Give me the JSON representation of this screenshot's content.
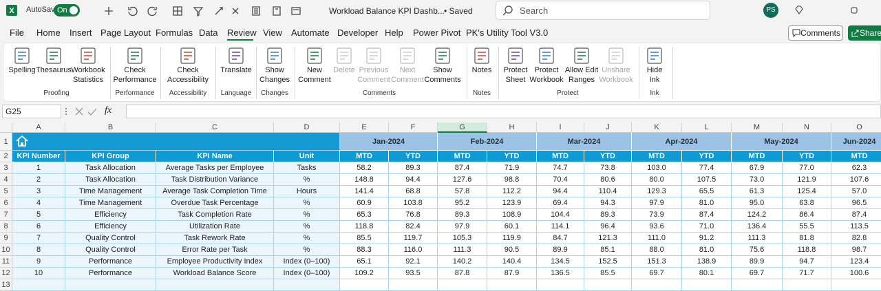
{
  "titlebar": {
    "autosave": "AutoSave",
    "toggle": "On",
    "title": "Workload Balance KPI Dashb...",
    "status": "• Saved",
    "search": "Search",
    "avatar": "PS"
  },
  "menu": {
    "tabs": [
      "File",
      "Home",
      "Insert",
      "Page Layout",
      "Formulas",
      "Data",
      "Review",
      "View",
      "Automate",
      "Developer",
      "Help",
      "Power Pivot",
      "PK's Utility Tool V3.0"
    ],
    "comments": "Comments",
    "share": "Share"
  },
  "ribbon": {
    "groups": [
      {
        "label": "Proofing",
        "buttons": [
          [
            "Spelling"
          ],
          [
            "Thesaurus"
          ],
          [
            "Workbook",
            "Statistics"
          ]
        ]
      },
      {
        "label": "Performance",
        "buttons": [
          [
            "Check",
            "Performance"
          ]
        ]
      },
      {
        "label": "Accessibility",
        "buttons": [
          [
            "Check",
            "Accessibility"
          ]
        ]
      },
      {
        "label": "Language",
        "buttons": [
          [
            "Translate"
          ]
        ]
      },
      {
        "label": "Changes",
        "buttons": [
          [
            "Show",
            "Changes"
          ]
        ]
      },
      {
        "label": "Comments",
        "buttons": [
          [
            "New",
            "Comment"
          ],
          [
            "Delete"
          ],
          [
            "Previous",
            "Comment"
          ],
          [
            "Next",
            "Comment"
          ],
          [
            "Show",
            "Comments"
          ]
        ]
      },
      {
        "label": "Notes",
        "buttons": [
          [
            "Notes"
          ]
        ]
      },
      {
        "label": "Protect",
        "buttons": [
          [
            "Protect",
            "Sheet"
          ],
          [
            "Protect",
            "Workbook"
          ],
          [
            "Allow Edit",
            "Ranges"
          ],
          [
            "Unshare",
            "Workbook"
          ]
        ]
      },
      {
        "label": "Ink",
        "buttons": [
          [
            "Hide",
            "Ink"
          ]
        ]
      }
    ]
  },
  "formula_bar": {
    "name_box": "G25",
    "fx": "fx"
  },
  "sheet": {
    "columns": [
      "A",
      "B",
      "C",
      "D",
      "E",
      "F",
      "G",
      "H",
      "I",
      "J",
      "K",
      "L",
      "M",
      "N",
      "O"
    ],
    "rows": [
      1,
      2,
      3,
      4,
      5,
      6,
      7,
      8,
      9,
      10,
      11,
      12,
      13
    ],
    "months": [
      "Jan-2024",
      "Feb-2024",
      "Mar-2024",
      "Apr-2024",
      "May-2024",
      "Jun-2024"
    ],
    "headers": [
      "KPI Number",
      "KPI Group",
      "KPI Name",
      "Unit"
    ],
    "subheaders": [
      "MTD",
      "YTD",
      "MTD",
      "YTD",
      "MTD",
      "YTD",
      "MTD",
      "YTD",
      "MTD",
      "YTD",
      "MTD"
    ],
    "data": [
      [
        1,
        "Task Allocation",
        "Average Tasks per Employee",
        "Tasks",
        "58.2",
        "89.3",
        "87.4",
        "71.9",
        "74.7",
        "73.8",
        "103.0",
        "77.4",
        "67.9",
        "77.0",
        "62.3"
      ],
      [
        2,
        "Task Allocation",
        "Task Distribution Variance",
        "%",
        "148.8",
        "94.4",
        "127.6",
        "98.8",
        "70.4",
        "80.6",
        "80.0",
        "107.5",
        "73.0",
        "121.9",
        "107.6"
      ],
      [
        3,
        "Time Management",
        "Average Task Completion Time",
        "Hours",
        "141.4",
        "68.8",
        "57.8",
        "112.2",
        "94.4",
        "110.4",
        "129.3",
        "65.5",
        "61.3",
        "125.4",
        "57.0"
      ],
      [
        4,
        "Time Management",
        "Overdue Task Percentage",
        "%",
        "60.9",
        "103.8",
        "95.2",
        "123.9",
        "69.4",
        "94.3",
        "97.9",
        "81.0",
        "95.0",
        "63.8",
        "96.5"
      ],
      [
        5,
        "Efficiency",
        "Task Completion Rate",
        "%",
        "65.3",
        "76.8",
        "89.3",
        "108.9",
        "104.4",
        "89.3",
        "73.9",
        "87.4",
        "124.2",
        "86.4",
        "87.4"
      ],
      [
        6,
        "Efficiency",
        "Utilization Rate",
        "%",
        "118.8",
        "82.4",
        "97.9",
        "60.1",
        "114.1",
        "96.4",
        "93.6",
        "71.0",
        "136.4",
        "55.5",
        "113.5"
      ],
      [
        7,
        "Quality Control",
        "Task Rework Rate",
        "%",
        "85.5",
        "119.7",
        "105.3",
        "119.9",
        "84.7",
        "121.3",
        "111.0",
        "91.2",
        "111.3",
        "81.8",
        "82.8"
      ],
      [
        8,
        "Quality Control",
        "Error Rate per Task",
        "%",
        "88.3",
        "116.0",
        "111.3",
        "90.5",
        "89.9",
        "85.1",
        "88.0",
        "81.0",
        "75.6",
        "118.8",
        "98.7"
      ],
      [
        9,
        "Performance",
        "Employee Productivity Index",
        "Index (0–100)",
        "65.1",
        "92.1",
        "140.2",
        "140.4",
        "134.5",
        "152.5",
        "151.3",
        "138.9",
        "89.9",
        "94.7",
        "123.4"
      ],
      [
        10,
        "Performance",
        "Workload Balance Score",
        "Index (0–100)",
        "109.2",
        "93.5",
        "87.8",
        "87.9",
        "136.5",
        "85.5",
        "69.7",
        "80.1",
        "69.7",
        "71.7",
        "100.6"
      ]
    ]
  }
}
